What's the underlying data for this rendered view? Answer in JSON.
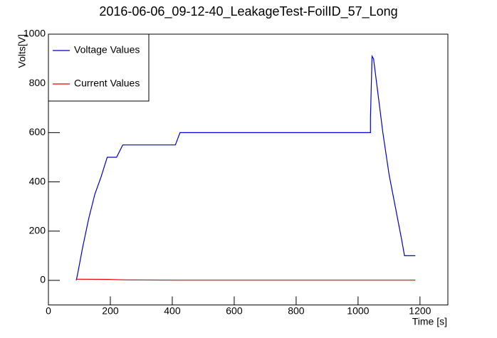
{
  "chart_data": {
    "type": "line",
    "title": "2016-06-06_09-12-40_LeakageTest-FoilID_57_Long",
    "x_label": "Time [s]",
    "y_label": "Volts[V]",
    "xlim": [
      0,
      1290
    ],
    "ylim": [
      -100,
      1000
    ],
    "xticks": [
      0,
      200,
      400,
      600,
      800,
      1000,
      1200
    ],
    "yticks": [
      0,
      200,
      400,
      600,
      800,
      1000
    ],
    "legend": "upper left",
    "series": [
      {
        "name": "Voltage Values",
        "color": "#0000cc",
        "x": [
          90,
          95,
          110,
          130,
          150,
          170,
          190,
          220,
          240,
          410,
          425,
          1040,
          1040,
          1045,
          1050,
          1060,
          1080,
          1100,
          1120,
          1140,
          1150,
          1185
        ],
        "values": [
          0,
          30,
          130,
          250,
          350,
          420,
          500,
          500,
          550,
          550,
          600,
          600,
          660,
          910,
          900,
          800,
          600,
          430,
          300,
          170,
          100,
          100
        ]
      },
      {
        "name": "Current Values",
        "color": "#e00000",
        "x": [
          90,
          190,
          250,
          420,
          600,
          1000,
          1185
        ],
        "values": [
          5,
          4,
          2,
          1,
          1,
          1,
          1
        ]
      }
    ]
  }
}
